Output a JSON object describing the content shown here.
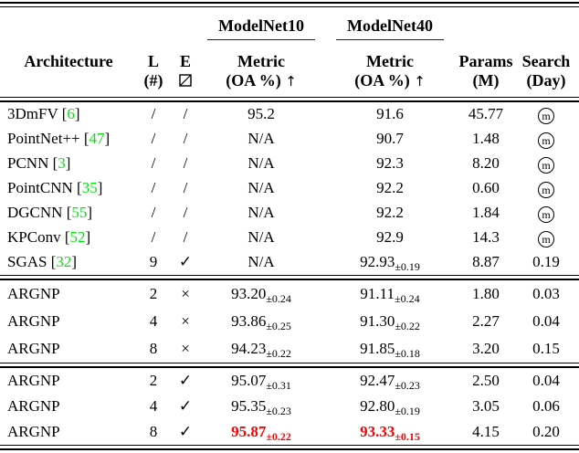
{
  "colors": {
    "citation_green": "#00e60a",
    "highlight_red": "#ff0000",
    "text_black": "#000000"
  },
  "header": {
    "group1": "ModelNet10",
    "group2": "ModelNet40",
    "architecture": "Architecture",
    "layers_line1": "L",
    "layers_line2": "(#)",
    "edge_line1": "E",
    "metric_line1": "Metric",
    "metric_line2": "(OA %)",
    "up_arrow": "↑",
    "params_line1": "Params",
    "params_line2": "(M)",
    "search_line1": "Search",
    "search_line2": "(Day)"
  },
  "icons": {
    "slash": "/",
    "check": "✓",
    "cross": "×",
    "edge_checkbox": "square-with-rising-diagonal",
    "manual_search": "circled-m",
    "circled_m_letter": "m"
  },
  "sections": [
    {
      "rows": [
        {
          "arch": "3DmFV",
          "cite": "6",
          "layers": "/",
          "edge": "slash",
          "m10": "95.2",
          "m10_std": "",
          "m40": "91.6",
          "m40_std": "",
          "params": "45.77",
          "search": "manual"
        },
        {
          "arch": "PointNet++",
          "cite": "47",
          "layers": "/",
          "edge": "slash",
          "m10": "N/A",
          "m10_std": "",
          "m40": "90.7",
          "m40_std": "",
          "params": "1.48",
          "search": "manual"
        },
        {
          "arch": "PCNN",
          "cite": "3",
          "layers": "/",
          "edge": "slash",
          "m10": "N/A",
          "m10_std": "",
          "m40": "92.3",
          "m40_std": "",
          "params": "8.20",
          "search": "manual"
        },
        {
          "arch": "PointCNN",
          "cite": "35",
          "layers": "/",
          "edge": "slash",
          "m10": "N/A",
          "m10_std": "",
          "m40": "92.2",
          "m40_std": "",
          "params": "0.60",
          "search": "manual"
        },
        {
          "arch": "DGCNN",
          "cite": "55",
          "layers": "/",
          "edge": "slash",
          "m10": "N/A",
          "m10_std": "",
          "m40": "92.2",
          "m40_std": "",
          "params": "1.84",
          "search": "manual"
        },
        {
          "arch": "KPConv",
          "cite": "52",
          "layers": "/",
          "edge": "slash",
          "m10": "N/A",
          "m10_std": "",
          "m40": "92.9",
          "m40_std": "",
          "params": "14.3",
          "search": "manual"
        },
        {
          "arch": "SGAS",
          "cite": "32",
          "layers": "9",
          "edge": "check",
          "m10": "N/A",
          "m10_std": "",
          "m40": "92.93",
          "m40_std": "0.19",
          "params": "8.87",
          "search": "0.19"
        }
      ]
    },
    {
      "rows": [
        {
          "arch": "ARGNP",
          "cite": "",
          "layers": "2",
          "edge": "cross",
          "m10": "93.20",
          "m10_std": "0.24",
          "m40": "91.11",
          "m40_std": "0.24",
          "params": "1.80",
          "search": "0.03"
        },
        {
          "arch": "ARGNP",
          "cite": "",
          "layers": "4",
          "edge": "cross",
          "m10": "93.86",
          "m10_std": "0.25",
          "m40": "91.30",
          "m40_std": "0.22",
          "params": "2.27",
          "search": "0.04"
        },
        {
          "arch": "ARGNP",
          "cite": "",
          "layers": "8",
          "edge": "cross",
          "m10": "94.23",
          "m10_std": "0.22",
          "m40": "91.85",
          "m40_std": "0.18",
          "params": "3.20",
          "search": "0.15"
        }
      ]
    },
    {
      "rows": [
        {
          "arch": "ARGNP",
          "cite": "",
          "layers": "2",
          "edge": "check",
          "m10": "95.07",
          "m10_std": "0.31",
          "m40": "92.47",
          "m40_std": "0.23",
          "params": "2.50",
          "search": "0.04"
        },
        {
          "arch": "ARGNP",
          "cite": "",
          "layers": "4",
          "edge": "check",
          "m10": "95.35",
          "m10_std": "0.23",
          "m40": "92.80",
          "m40_std": "0.19",
          "params": "3.05",
          "search": "0.06"
        },
        {
          "arch": "ARGNP",
          "cite": "",
          "layers": "8",
          "edge": "check",
          "m10": "95.87",
          "m10_std": "0.22",
          "m40": "93.33",
          "m40_std": "0.15",
          "params": "4.15",
          "search": "0.20",
          "highlight": true
        }
      ]
    }
  ]
}
